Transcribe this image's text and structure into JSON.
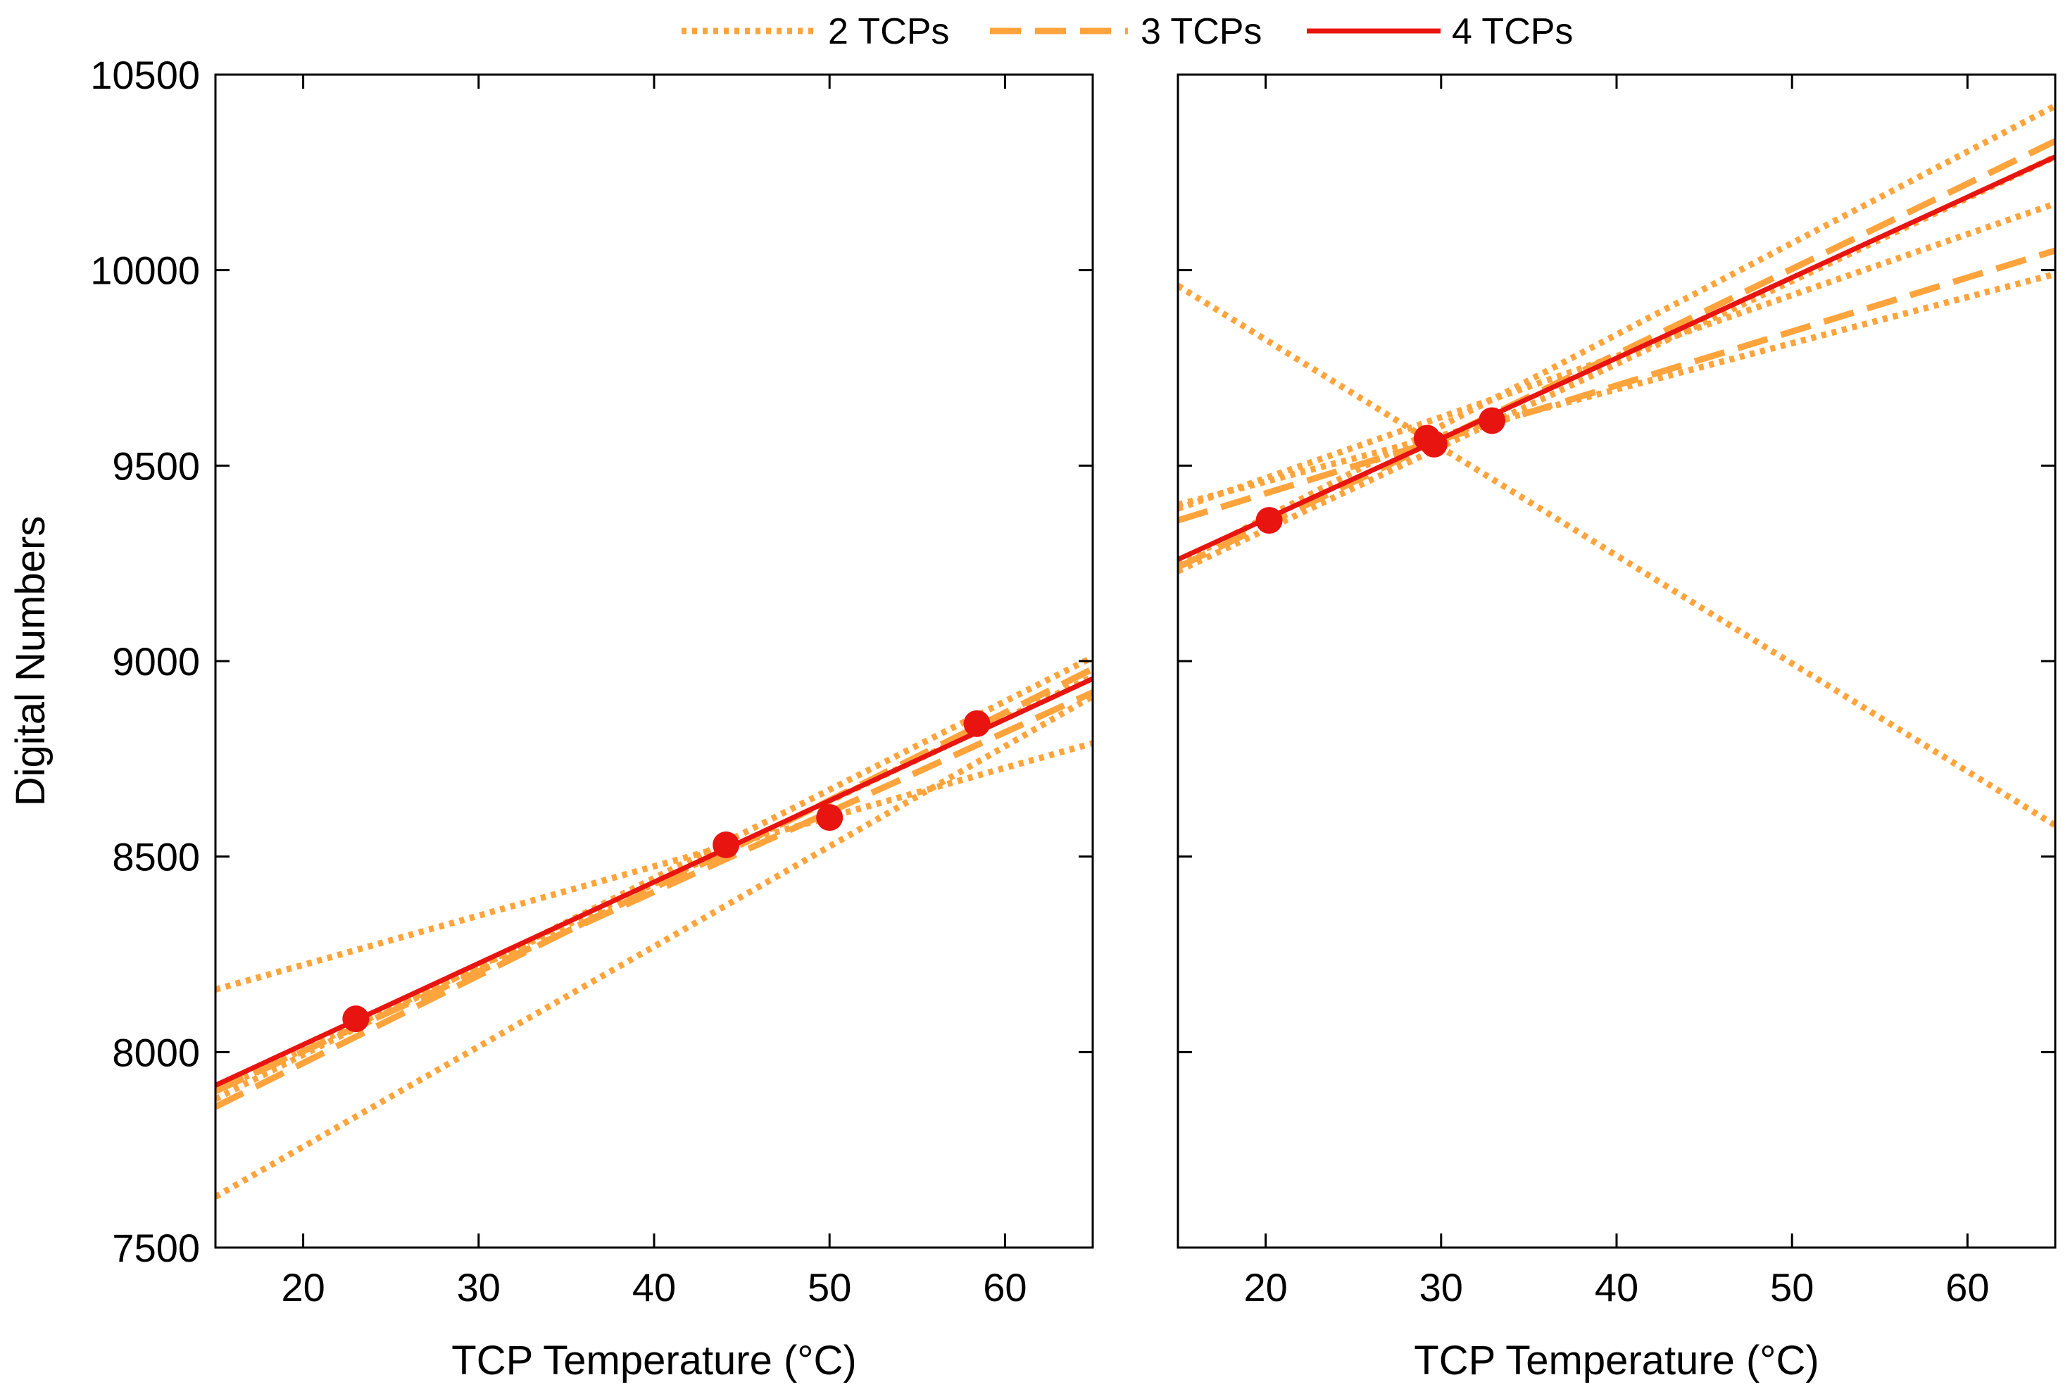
{
  "legend": [
    {
      "name": "2 TCPs",
      "style": "dotted",
      "color": "#ffa43c"
    },
    {
      "name": "3 TCPs",
      "style": "dashed",
      "color": "#ffa43c"
    },
    {
      "name": "4 TCPs",
      "style": "solid",
      "color": "#e8140f"
    }
  ],
  "colors": {
    "fit_2_3": "#ffa43c",
    "fit_4": "#e8140f",
    "points": "#e8140f",
    "axes": "#000000"
  },
  "chart_data": [
    {
      "type": "line",
      "panel": "left",
      "xlabel": "TCP Temperature (°C)",
      "ylabel": "Digital Numbers",
      "xlim": [
        15,
        65
      ],
      "ylim": [
        7500,
        10500
      ],
      "xticks": [
        "20",
        "30",
        "40",
        "50",
        "60"
      ],
      "yticks": [
        "7500",
        "8000",
        "8500",
        "9000",
        "9500",
        "10000",
        "10500"
      ],
      "points": {
        "x": [
          23.0,
          44.1,
          50.0,
          58.4
        ],
        "y": [
          8085,
          8530,
          8600,
          8840
        ]
      },
      "series": [
        {
          "name": "2 TCPs",
          "style": "dotted",
          "y_at_15": 8160,
          "y_at_65": 8790
        },
        {
          "name": "2 TCPs",
          "style": "dotted",
          "y_at_15": 7630,
          "y_at_65": 8910
        },
        {
          "name": "2 TCPs",
          "style": "dotted",
          "y_at_15": 7900,
          "y_at_65": 8960
        },
        {
          "name": "2 TCPs",
          "style": "dotted",
          "y_at_15": 7880,
          "y_at_65": 9010
        },
        {
          "name": "3 TCPs",
          "style": "dashed",
          "y_at_15": 7860,
          "y_at_65": 8980
        },
        {
          "name": "3 TCPs",
          "style": "dashed",
          "y_at_15": 7900,
          "y_at_65": 8920
        },
        {
          "name": "4 TCPs",
          "style": "solid",
          "y_at_15": 7915,
          "y_at_65": 8955
        }
      ]
    },
    {
      "type": "line",
      "panel": "right",
      "xlabel": "TCP Temperature (°C)",
      "ylabel": "",
      "xlim": [
        15,
        65
      ],
      "ylim": [
        7500,
        10500
      ],
      "xticks": [
        "20",
        "30",
        "40",
        "50",
        "60"
      ],
      "yticks": [],
      "points": {
        "x": [
          20.2,
          29.2,
          29.6,
          32.9
        ],
        "y": [
          9360,
          9570,
          9555,
          9615
        ]
      },
      "series": [
        {
          "name": "2 TCPs",
          "style": "dotted",
          "y_at_15": 9960,
          "y_at_65": 8580
        },
        {
          "name": "2 TCPs",
          "style": "dotted",
          "y_at_15": 9400,
          "y_at_65": 9990
        },
        {
          "name": "2 TCPs",
          "style": "dotted",
          "y_at_15": 9390,
          "y_at_65": 10170
        },
        {
          "name": "2 TCPs",
          "style": "dotted",
          "y_at_15": 9250,
          "y_at_65": 10420
        },
        {
          "name": "2 TCPs",
          "style": "dotted",
          "y_at_15": 9230,
          "y_at_65": 10290
        },
        {
          "name": "3 TCPs",
          "style": "dashed",
          "y_at_15": 9360,
          "y_at_65": 10050
        },
        {
          "name": "3 TCPs",
          "style": "dashed",
          "y_at_15": 9240,
          "y_at_65": 10330
        },
        {
          "name": "4 TCPs",
          "style": "solid",
          "y_at_15": 9260,
          "y_at_65": 10290
        }
      ]
    }
  ]
}
